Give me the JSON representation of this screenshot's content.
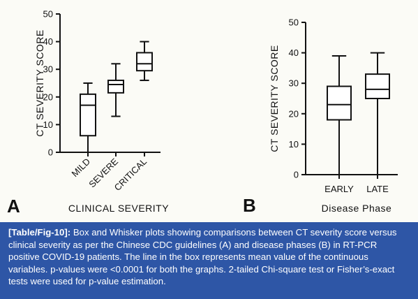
{
  "chart_data": [
    {
      "type": "boxplot",
      "panel": "A",
      "ylabel": "CT SEVERITY SCORE",
      "xlabel": "CLINICAL SEVERITY",
      "ylim": [
        0,
        50
      ],
      "yticks": [
        0,
        10,
        20,
        30,
        40,
        50
      ],
      "categories": [
        "MILD",
        "SEVERE",
        "CRITICAL"
      ],
      "boxes": [
        {
          "min": 0,
          "q1": 6,
          "median": 17,
          "q3": 21,
          "max": 25
        },
        {
          "min": 13,
          "q1": 21.5,
          "median": 24.5,
          "q3": 26,
          "max": 32
        },
        {
          "min": 26,
          "q1": 29.5,
          "median": 32,
          "q3": 36,
          "max": 40
        }
      ]
    },
    {
      "type": "boxplot",
      "panel": "B",
      "ylabel": "CT SEVERITY SCORE",
      "xlabel": "Disease Phase",
      "ylim": [
        0,
        50
      ],
      "yticks": [
        0,
        10,
        20,
        30,
        40,
        50
      ],
      "categories": [
        "EARLY",
        "LATE"
      ],
      "boxes": [
        {
          "min": 0,
          "q1": 18,
          "median": 23,
          "q3": 29,
          "max": 39
        },
        {
          "min": 0,
          "q1": 25,
          "median": 28,
          "q3": 33,
          "max": 40
        }
      ]
    }
  ],
  "caption": {
    "tag": "[Table/Fig-10]:",
    "text": "Box and Whisker plots showing comparisons between CT severity score versus clinical severity as per the Chinese CDC guidelines (A) and disease phases (B) in RT-PCR positive COVID-19 patients. The line in the box represents mean value of the continuous variables. p-values were <0.0001 for both the graphs. 2-tailed Chi-square test or Fisher’s-exact tests were used for p-value estimation."
  }
}
